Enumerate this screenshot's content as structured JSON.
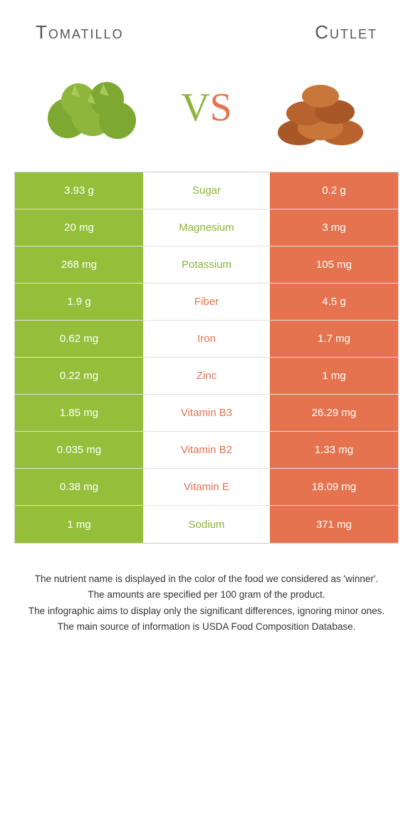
{
  "header": {
    "left_title": "Tomatillo",
    "right_title": "Cutlet"
  },
  "vs": {
    "v": "V",
    "s": "S"
  },
  "colors": {
    "green": "#95bf3b",
    "orange": "#e57350",
    "mid_green_text": "#8cb43a",
    "mid_orange_text": "#e57350"
  },
  "rows": [
    {
      "nutrient": "Sugar",
      "left": "3.93 g",
      "right": "0.2 g",
      "winner": "green"
    },
    {
      "nutrient": "Magnesium",
      "left": "20 mg",
      "right": "3 mg",
      "winner": "green"
    },
    {
      "nutrient": "Potassium",
      "left": "268 mg",
      "right": "105 mg",
      "winner": "green"
    },
    {
      "nutrient": "Fiber",
      "left": "1.9 g",
      "right": "4.5 g",
      "winner": "orange"
    },
    {
      "nutrient": "Iron",
      "left": "0.62 mg",
      "right": "1.7 mg",
      "winner": "orange"
    },
    {
      "nutrient": "Zinc",
      "left": "0.22 mg",
      "right": "1 mg",
      "winner": "orange"
    },
    {
      "nutrient": "Vitamin B3",
      "left": "1.85 mg",
      "right": "26.29 mg",
      "winner": "orange"
    },
    {
      "nutrient": "Vitamin B2",
      "left": "0.035 mg",
      "right": "1.33 mg",
      "winner": "orange"
    },
    {
      "nutrient": "Vitamin E",
      "left": "0.38 mg",
      "right": "18.09 mg",
      "winner": "orange"
    },
    {
      "nutrient": "Sodium",
      "left": "1 mg",
      "right": "371 mg",
      "winner": "green"
    }
  ],
  "footnotes": [
    "The nutrient name is displayed in the color of the food we considered as 'winner'.",
    "The amounts are specified per 100 gram of the product.",
    "The infographic aims to display only the significant differences, ignoring minor ones.",
    "The main source of information is USDA Food Composition Database."
  ]
}
